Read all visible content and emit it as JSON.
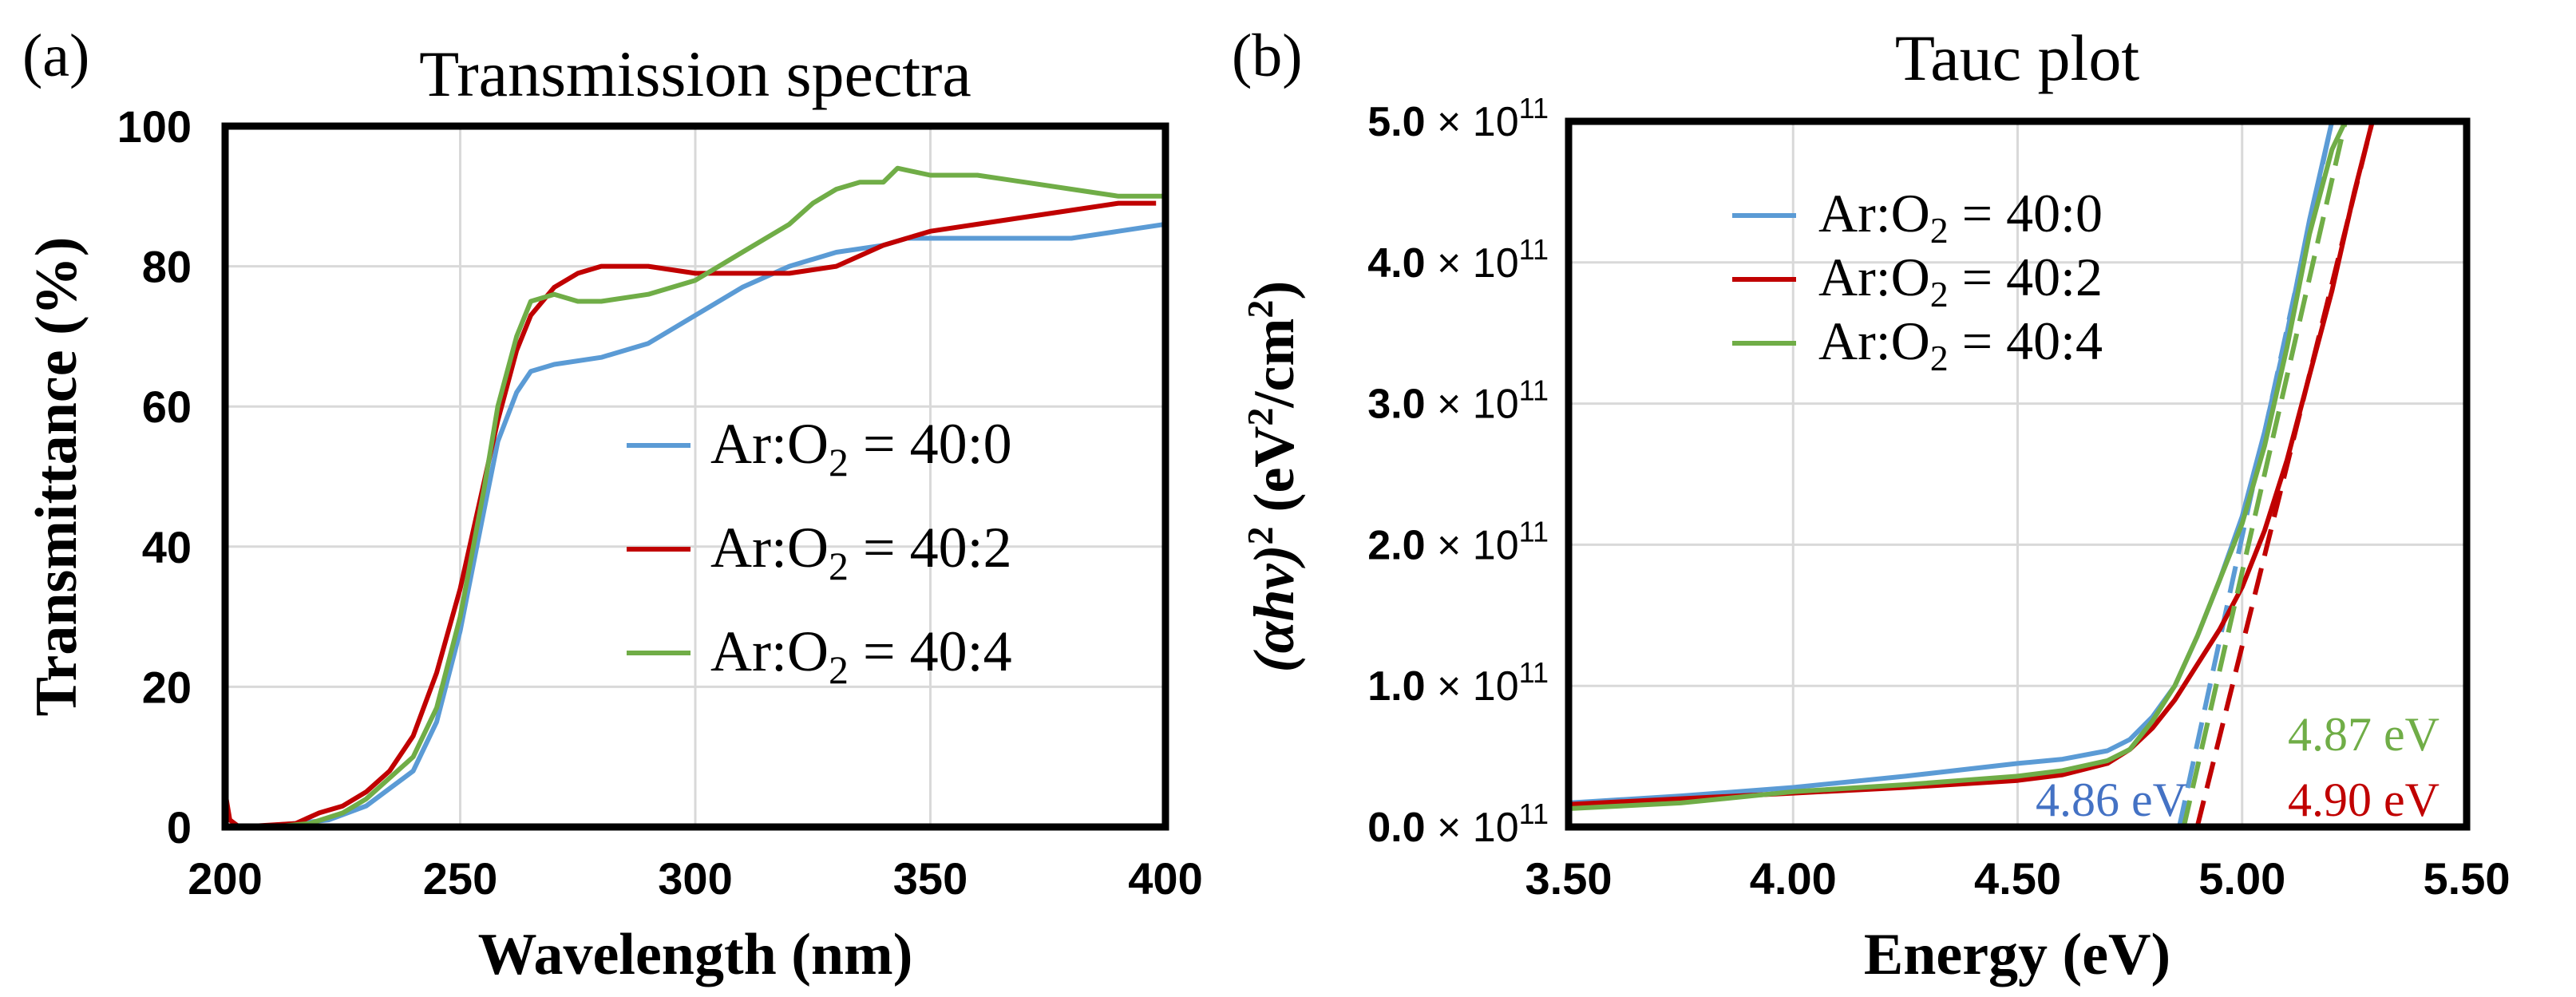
{
  "chart_data": [
    {
      "type": "line",
      "panel_label": "(a)",
      "title": "Transmission spectra",
      "xlabel": "Wavelength (nm)",
      "ylabel": "Transmittance (%)",
      "xlim": [
        200,
        400
      ],
      "ylim": [
        0,
        100
      ],
      "xticks": [
        "200",
        "250",
        "300",
        "350",
        "400"
      ],
      "yticks": [
        "0",
        "20",
        "40",
        "60",
        "80",
        "100"
      ],
      "grid": true,
      "legend_position": "center-right",
      "series": [
        {
          "name": "Ar:O2 = 40:0",
          "legend_main": "Ar:O",
          "legend_sub": "2",
          "legend_tail": " = 40:0",
          "color": "#5b9bd5",
          "x": [
            200,
            205,
            215,
            222,
            230,
            240,
            245,
            250,
            255,
            258,
            262,
            265,
            270,
            280,
            290,
            300,
            310,
            320,
            330,
            340,
            345,
            350,
            360,
            380,
            390,
            400
          ],
          "y": [
            0,
            0,
            0.5,
            1,
            3,
            8,
            15,
            28,
            45,
            55,
            62,
            65,
            66,
            67,
            69,
            73,
            77,
            80,
            82,
            83,
            84,
            84,
            84,
            84,
            85,
            86
          ]
        },
        {
          "name": "Ar:O2 = 40:2",
          "legend_main": "Ar:O",
          "legend_sub": "2",
          "legend_tail": " = 40:2",
          "color": "#c00000",
          "x": [
            200,
            201,
            203,
            215,
            220,
            225,
            230,
            235,
            240,
            245,
            250,
            255,
            258,
            262,
            265,
            270,
            275,
            280,
            290,
            300,
            320,
            330,
            340,
            350,
            360,
            370,
            380,
            390,
            398
          ],
          "y": [
            5,
            1,
            0,
            0.5,
            2,
            3,
            5,
            8,
            13,
            22,
            34,
            49,
            58,
            68,
            73,
            77,
            79,
            80,
            80,
            79,
            79,
            80,
            83,
            85,
            86,
            87,
            88,
            89,
            89
          ]
        },
        {
          "name": "Ar:O2 = 40:4",
          "legend_main": "Ar:O",
          "legend_sub": "2",
          "legend_tail": " = 40:4",
          "color": "#70ad47",
          "x": [
            200,
            210,
            218,
            225,
            230,
            240,
            245,
            250,
            255,
            258,
            262,
            265,
            270,
            275,
            280,
            290,
            300,
            310,
            320,
            325,
            330,
            335,
            340,
            343,
            350,
            360,
            370,
            380,
            390,
            400
          ],
          "y": [
            0,
            0,
            0.5,
            2,
            4,
            10,
            17,
            30,
            48,
            60,
            70,
            75,
            76,
            75,
            75,
            76,
            78,
            82,
            86,
            89,
            91,
            92,
            92,
            94,
            93,
            93,
            92,
            91,
            90,
            90
          ]
        }
      ]
    },
    {
      "type": "line",
      "panel_label": "(b)",
      "title": "Tauc plot",
      "xlabel": "Energy (eV)",
      "ylabel_main": "(αhν)",
      "ylabel_sup": "2",
      "ylabel_tail": " (eV",
      "ylabel_sup2": "2",
      "ylabel_mid": "/cm",
      "ylabel_sup3": "2",
      "ylabel_end": ")",
      "xlim": [
        3.5,
        5.5
      ],
      "ylim": [
        0,
        5.0
      ],
      "y_unit_note": "values in units of 1e11 eV^2/cm^2",
      "xticks": [
        "3.50",
        "4.00",
        "4.50",
        "5.00",
        "5.50"
      ],
      "yticks": [
        {
          "mantissa": "0.0",
          "times": " × 10",
          "exp": "11"
        },
        {
          "mantissa": "1.0",
          "times": " × 10",
          "exp": "11"
        },
        {
          "mantissa": "2.0",
          "times": " × 10",
          "exp": "11"
        },
        {
          "mantissa": "3.0",
          "times": " × 10",
          "exp": "11"
        },
        {
          "mantissa": "4.0",
          "times": " × 10",
          "exp": "11"
        },
        {
          "mantissa": "5.0",
          "times": " × 10",
          "exp": "11"
        }
      ],
      "grid": true,
      "legend_position": "top-left",
      "series": [
        {
          "name": "Ar:O2 = 40:0",
          "legend_main": "Ar:O",
          "legend_sub": "2",
          "legend_tail": " = 40:0",
          "color": "#5b9bd5",
          "x": [
            3.5,
            3.75,
            4.0,
            4.25,
            4.5,
            4.6,
            4.7,
            4.75,
            4.8,
            4.85,
            4.9,
            4.95,
            5.0,
            5.05,
            5.1,
            5.15,
            5.2
          ],
          "y": [
            0.17,
            0.22,
            0.28,
            0.36,
            0.45,
            0.48,
            0.54,
            0.62,
            0.78,
            1.0,
            1.35,
            1.75,
            2.2,
            2.8,
            3.5,
            4.3,
            5.0
          ],
          "fit_x": [
            4.86,
            5.2
          ],
          "fit_y": [
            0,
            5.0
          ],
          "bandgap_label": "4.86 eV"
        },
        {
          "name": "Ar:O2 = 40:2",
          "legend_main": "Ar:O",
          "legend_sub": "2",
          "legend_tail": " = 40:2",
          "color": "#c00000",
          "x": [
            3.5,
            3.75,
            4.0,
            4.25,
            4.5,
            4.6,
            4.7,
            4.75,
            4.8,
            4.85,
            4.9,
            4.95,
            5.0,
            5.05,
            5.1,
            5.15,
            5.2,
            5.25,
            5.29
          ],
          "y": [
            0.16,
            0.2,
            0.24,
            0.28,
            0.33,
            0.37,
            0.45,
            0.55,
            0.7,
            0.9,
            1.15,
            1.4,
            1.7,
            2.1,
            2.6,
            3.2,
            3.8,
            4.5,
            5.0
          ],
          "fit_x": [
            4.9,
            5.29
          ],
          "fit_y": [
            0,
            5.0
          ],
          "bandgap_label": "4.90 eV"
        },
        {
          "name": "Ar:O2 = 40:4",
          "legend_main": "Ar:O",
          "legend_sub": "2",
          "legend_tail": " = 40:4",
          "color": "#70ad47",
          "x": [
            3.5,
            3.75,
            4.0,
            4.25,
            4.5,
            4.6,
            4.7,
            4.75,
            4.8,
            4.85,
            4.9,
            4.95,
            5.0,
            5.05,
            5.1,
            5.15,
            5.2,
            5.23
          ],
          "y": [
            0.13,
            0.17,
            0.25,
            0.3,
            0.36,
            0.4,
            0.47,
            0.55,
            0.75,
            1.0,
            1.35,
            1.75,
            2.15,
            2.7,
            3.4,
            4.2,
            4.8,
            5.0
          ],
          "fit_x": [
            4.87,
            5.23
          ],
          "fit_y": [
            0,
            5.0
          ],
          "bandgap_label": "4.87 eV"
        }
      ]
    }
  ]
}
